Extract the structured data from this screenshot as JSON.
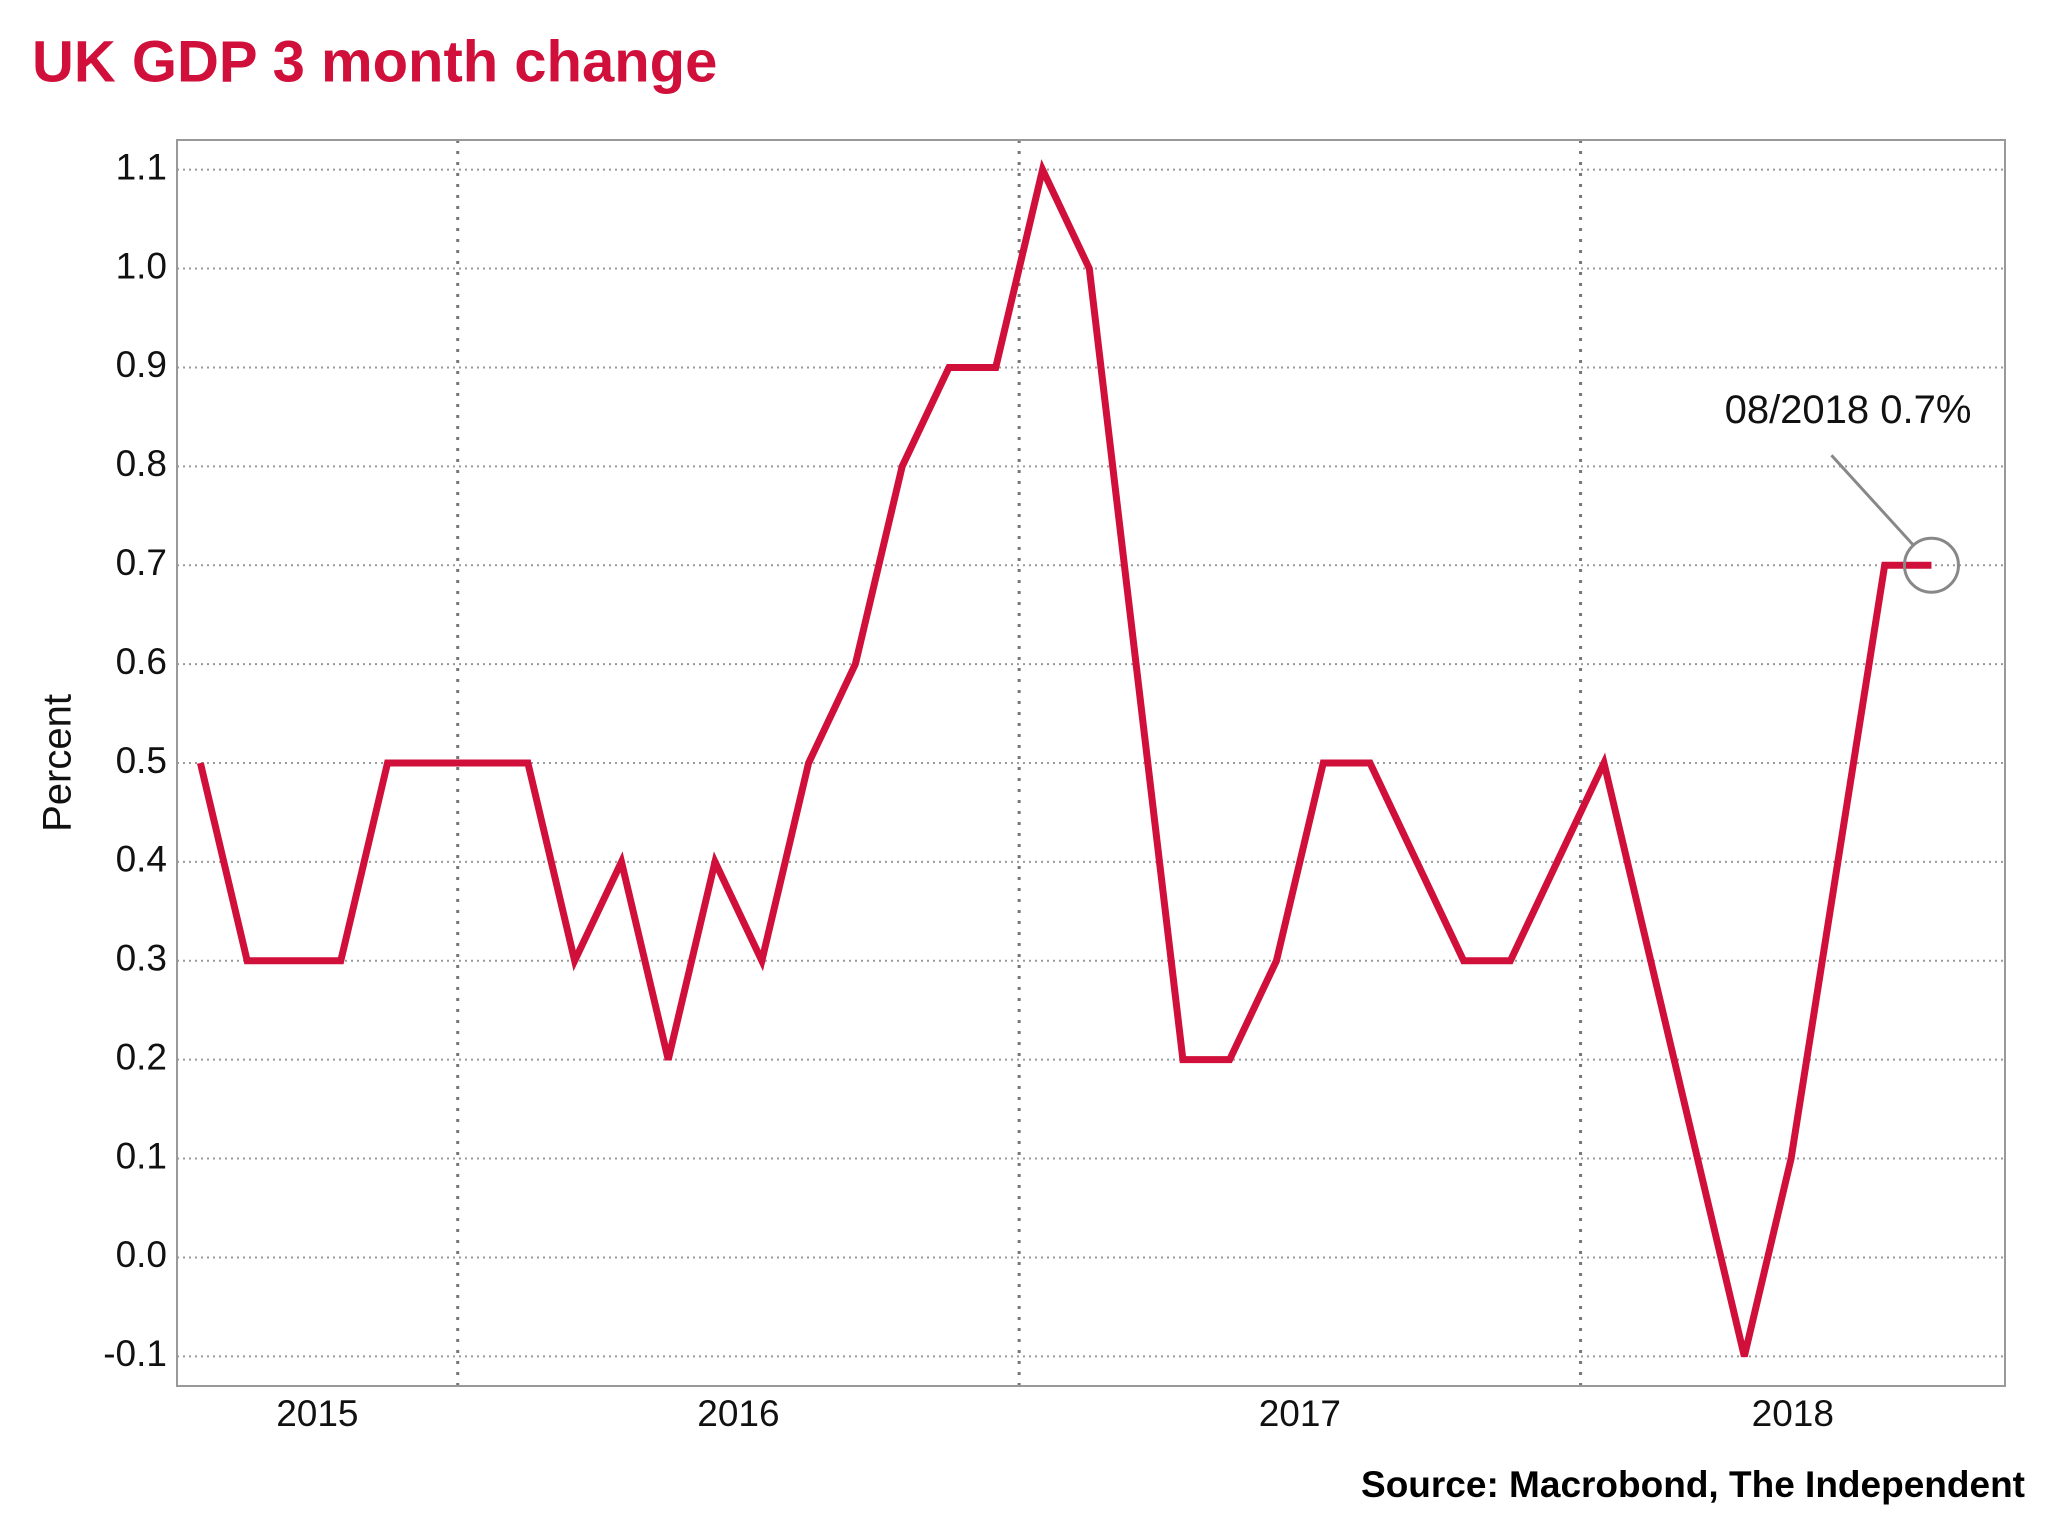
{
  "chart_data": {
    "type": "line",
    "title": "UK GDP 3 month change",
    "y_label": "Percent",
    "source": "Source: Macrobond, The Independent",
    "annotation": "08/2018 0.7%",
    "x": [
      2015.5417,
      2015.625,
      2015.7083,
      2015.7917,
      2015.875,
      2015.9583,
      2016.0417,
      2016.125,
      2016.2083,
      2016.2917,
      2016.375,
      2016.4583,
      2016.5417,
      2016.625,
      2016.7083,
      2016.7917,
      2016.875,
      2016.9583,
      2017.0417,
      2017.125,
      2017.2083,
      2017.2917,
      2017.375,
      2017.4583,
      2017.5417,
      2017.625,
      2017.7083,
      2017.7917,
      2017.875,
      2017.9583,
      2018.0417,
      2018.125,
      2018.2083,
      2018.2917,
      2018.375,
      2018.4583,
      2018.5417,
      2018.625
    ],
    "series": [
      {
        "name": "UK GDP 3 month change",
        "color": "#d0103a",
        "values": [
          0.5,
          0.3,
          0.3,
          0.3,
          0.5,
          0.5,
          0.5,
          0.5,
          0.3,
          0.4,
          0.2,
          0.4,
          0.3,
          0.5,
          0.6,
          0.8,
          0.9,
          0.9,
          1.1,
          1.0,
          0.6,
          0.2,
          0.2,
          0.3,
          0.5,
          0.5,
          0.4,
          0.3,
          0.3,
          0.4,
          0.5,
          0.3,
          0.1,
          -0.1,
          0.1,
          0.4,
          0.7,
          0.7
        ]
      }
    ],
    "xlim": [
      2015.5,
      2018.756
    ],
    "xticks": [
      {
        "value": 2015.75,
        "label": "2015"
      },
      {
        "value": 2016.5,
        "label": "2016"
      },
      {
        "value": 2017.5,
        "label": "2017"
      },
      {
        "value": 2018.378,
        "label": "2018"
      }
    ],
    "xgrid": [
      2016,
      2017,
      2018
    ],
    "ylim": [
      -0.13,
      1.13
    ],
    "yticks": [
      {
        "value": -0.1,
        "label": "-0.1"
      },
      {
        "value": 0.0,
        "label": "0.0"
      },
      0.1,
      0.2,
      0.3,
      0.4,
      0.5,
      0.6,
      0.7,
      0.8,
      0.9,
      {
        "value": 1.0,
        "label": "1.0"
      },
      1.1
    ],
    "grid": true
  }
}
